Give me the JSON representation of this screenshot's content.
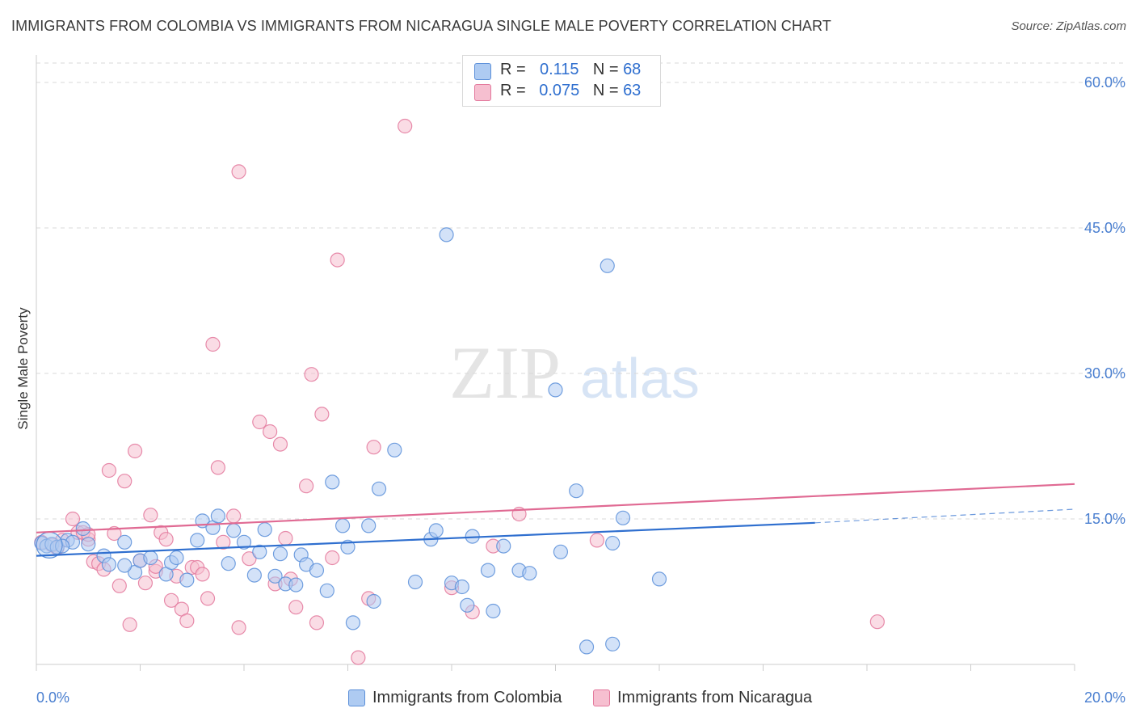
{
  "header": {
    "title": "IMMIGRANTS FROM COLOMBIA VS IMMIGRANTS FROM NICARAGUA SINGLE MALE POVERTY CORRELATION CHART",
    "source": "Source: ZipAtlas.com"
  },
  "watermark": {
    "zip": "ZIP",
    "atlas": "atlas"
  },
  "legend_top": {
    "rows": [
      {
        "r_label": "R =",
        "r_value": "0.115",
        "n_label": "N =",
        "n_value": "68"
      },
      {
        "r_label": "R =",
        "r_value": "0.075",
        "n_label": "N =",
        "n_value": "63"
      }
    ]
  },
  "legend_bottom": {
    "items": [
      {
        "label": "Immigrants from Colombia"
      },
      {
        "label": "Immigrants from Nicaragua"
      }
    ]
  },
  "colors": {
    "blue_fill": "#aecbf2",
    "blue_stroke": "#5b8fd9",
    "blue_line": "#2f6fcf",
    "pink_fill": "#f6bfd0",
    "pink_stroke": "#e3789c",
    "pink_line": "#e06a93",
    "grid": "#d8d8d8",
    "axis_text": "#4a7fd0"
  },
  "chart_data": {
    "type": "scatter",
    "title": "IMMIGRANTS FROM COLOMBIA VS IMMIGRANTS FROM NICARAGUA SINGLE MALE POVERTY CORRELATION CHART",
    "xlabel": "",
    "ylabel": "Single Male Poverty",
    "xlim": [
      0,
      20
    ],
    "ylim": [
      0,
      62
    ],
    "x_tick_labels": [
      "0.0%",
      "20.0%"
    ],
    "y_ticks": [
      15,
      30,
      45,
      60
    ],
    "y_tick_labels": [
      "15.0%",
      "30.0%",
      "45.0%",
      "60.0%"
    ],
    "grid": true,
    "legend_position": "top-center",
    "series": [
      {
        "name": "Immigrants from Colombia",
        "color": "blue",
        "points": [
          [
            0.1,
            12.5
          ],
          [
            0.2,
            12.2
          ],
          [
            0.3,
            12.4
          ],
          [
            0.4,
            12.1
          ],
          [
            0.6,
            12.8
          ],
          [
            0.7,
            12.6
          ],
          [
            0.9,
            14.0
          ],
          [
            1.3,
            11.2
          ],
          [
            1.4,
            10.3
          ],
          [
            1.7,
            12.6
          ],
          [
            1.9,
            9.5
          ],
          [
            2.0,
            10.7
          ],
          [
            2.2,
            11.0
          ],
          [
            2.5,
            9.3
          ],
          [
            2.6,
            10.5
          ],
          [
            2.9,
            8.7
          ],
          [
            3.1,
            12.8
          ],
          [
            3.2,
            14.8
          ],
          [
            3.4,
            14.1
          ],
          [
            3.5,
            15.3
          ],
          [
            3.7,
            10.4
          ],
          [
            3.8,
            13.8
          ],
          [
            4.0,
            12.6
          ],
          [
            4.2,
            9.2
          ],
          [
            4.3,
            11.6
          ],
          [
            4.4,
            13.9
          ],
          [
            4.6,
            9.1
          ],
          [
            4.7,
            11.4
          ],
          [
            4.8,
            8.3
          ],
          [
            5.0,
            8.2
          ],
          [
            5.1,
            11.3
          ],
          [
            5.2,
            10.3
          ],
          [
            5.4,
            9.7
          ],
          [
            5.6,
            7.6
          ],
          [
            5.7,
            18.8
          ],
          [
            5.9,
            14.3
          ],
          [
            6.0,
            12.1
          ],
          [
            6.1,
            4.3
          ],
          [
            6.4,
            14.3
          ],
          [
            6.5,
            6.5
          ],
          [
            6.6,
            18.1
          ],
          [
            6.9,
            22.1
          ],
          [
            7.3,
            8.5
          ],
          [
            7.6,
            12.9
          ],
          [
            7.7,
            13.8
          ],
          [
            7.9,
            44.3
          ],
          [
            8.0,
            8.4
          ],
          [
            8.2,
            8.0
          ],
          [
            8.3,
            6.1
          ],
          [
            8.4,
            13.2
          ],
          [
            8.7,
            9.7
          ],
          [
            8.8,
            5.5
          ],
          [
            9.0,
            12.2
          ],
          [
            9.3,
            9.7
          ],
          [
            9.5,
            9.4
          ],
          [
            10.0,
            28.3
          ],
          [
            10.1,
            11.6
          ],
          [
            10.4,
            17.9
          ],
          [
            10.6,
            1.8
          ],
          [
            11.1,
            12.5
          ],
          [
            11.1,
            2.1
          ],
          [
            11.3,
            15.1
          ],
          [
            11.0,
            41.1
          ],
          [
            12.0,
            8.8
          ],
          [
            1.0,
            12.4
          ],
          [
            2.7,
            11.0
          ],
          [
            0.5,
            12.2
          ],
          [
            1.7,
            10.2
          ]
        ]
      },
      {
        "name": "Immigrants from Nicaragua",
        "color": "pink",
        "points": [
          [
            0.1,
            12.6
          ],
          [
            0.3,
            12.3
          ],
          [
            0.5,
            12.8
          ],
          [
            0.7,
            15.0
          ],
          [
            0.8,
            13.6
          ],
          [
            1.0,
            12.9
          ],
          [
            1.1,
            10.6
          ],
          [
            1.2,
            10.4
          ],
          [
            1.3,
            9.8
          ],
          [
            1.4,
            20.0
          ],
          [
            1.5,
            13.5
          ],
          [
            1.6,
            8.1
          ],
          [
            1.7,
            18.9
          ],
          [
            1.8,
            4.1
          ],
          [
            1.9,
            22.0
          ],
          [
            2.0,
            10.7
          ],
          [
            2.1,
            8.4
          ],
          [
            2.2,
            15.4
          ],
          [
            2.3,
            9.6
          ],
          [
            2.4,
            13.6
          ],
          [
            2.5,
            12.9
          ],
          [
            2.6,
            6.6
          ],
          [
            2.7,
            9.1
          ],
          [
            2.8,
            5.7
          ],
          [
            2.9,
            4.5
          ],
          [
            3.0,
            10.0
          ],
          [
            3.1,
            10.0
          ],
          [
            3.2,
            9.3
          ],
          [
            3.3,
            6.8
          ],
          [
            3.4,
            33.0
          ],
          [
            3.5,
            20.3
          ],
          [
            3.6,
            12.6
          ],
          [
            3.8,
            15.3
          ],
          [
            3.9,
            3.8
          ],
          [
            3.9,
            50.8
          ],
          [
            4.1,
            10.9
          ],
          [
            4.3,
            25.0
          ],
          [
            4.5,
            24.0
          ],
          [
            4.6,
            8.3
          ],
          [
            4.7,
            22.7
          ],
          [
            4.8,
            13.0
          ],
          [
            4.9,
            8.8
          ],
          [
            5.0,
            5.9
          ],
          [
            5.2,
            18.4
          ],
          [
            5.3,
            29.9
          ],
          [
            5.4,
            4.3
          ],
          [
            5.5,
            25.8
          ],
          [
            5.7,
            11.0
          ],
          [
            5.8,
            41.7
          ],
          [
            6.2,
            0.7
          ],
          [
            6.4,
            6.8
          ],
          [
            6.5,
            22.4
          ],
          [
            7.1,
            55.5
          ],
          [
            8.0,
            7.9
          ],
          [
            8.4,
            5.4
          ],
          [
            8.8,
            12.2
          ],
          [
            9.3,
            15.5
          ],
          [
            10.8,
            12.8
          ],
          [
            16.2,
            4.4
          ],
          [
            0.4,
            12.0
          ],
          [
            0.9,
            13.6
          ],
          [
            2.3,
            10.1
          ],
          [
            1.0,
            13.4
          ]
        ]
      }
    ],
    "trend_lines": [
      {
        "series": "Immigrants from Colombia",
        "x": [
          0,
          15
        ],
        "y": [
          11.2,
          14.6
        ],
        "dashed_extension": {
          "x": [
            15,
            20
          ],
          "y": [
            14.6,
            16.0
          ]
        }
      },
      {
        "series": "Immigrants from Nicaragua",
        "x": [
          0,
          20
        ],
        "y": [
          13.6,
          18.6
        ]
      }
    ]
  }
}
